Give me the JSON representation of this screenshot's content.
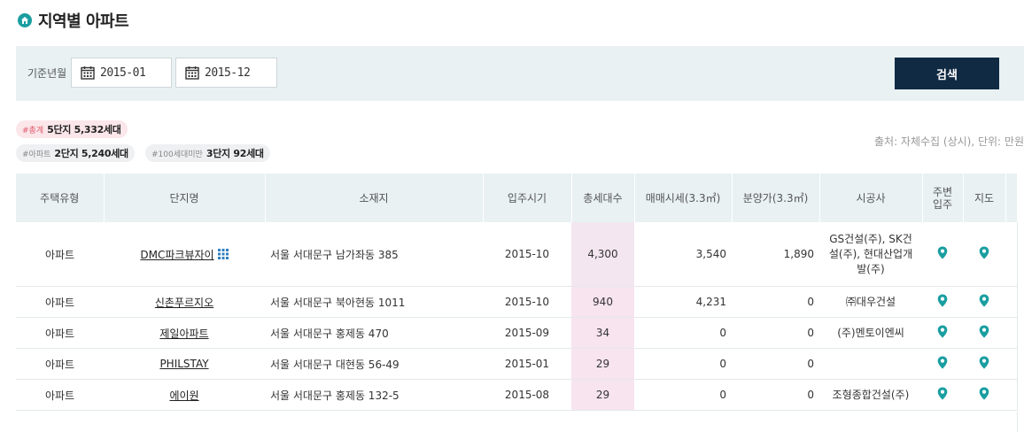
{
  "page": {
    "title": "지역별 아파트"
  },
  "search": {
    "label": "기준년월",
    "start": "2015-01",
    "end": "2015-12",
    "button": "검색"
  },
  "summary": {
    "total_key": "#총계",
    "total_value": "5단지 5,332세대",
    "apt_key": "#아파트",
    "apt_value": "2단지 5,240세대",
    "small_key": "#100세대미만",
    "small_value": "3단지 92세대",
    "source": "출처: 자체수집 (상시), 단위: 만원"
  },
  "table": {
    "headers": [
      "주택유형",
      "단지명",
      "소재지",
      "입주시기",
      "총세대수",
      "매매시세(3.3㎡)",
      "분양가(3.3㎡)",
      "시공사",
      "주변\n입주",
      "지도"
    ],
    "rows": [
      {
        "type": "아파트",
        "name": "DMC파크뷰자이",
        "addr": "서울 서대문구 남가좌동 385",
        "date": "2015-10",
        "units": "4,300",
        "price": "3,540",
        "presale": "1,890",
        "builder": "GS건설(주), SK건설(주), 현대산업개발(주)"
      },
      {
        "type": "아파트",
        "name": "신촌푸르지오",
        "addr": "서울 서대문구 북아현동 1011",
        "date": "2015-10",
        "units": "940",
        "price": "4,231",
        "presale": "0",
        "builder": "㈜대우건설"
      },
      {
        "type": "아파트",
        "name": "제일아파트",
        "addr": "서울 서대문구 홍제동 470",
        "date": "2015-09",
        "units": "34",
        "price": "0",
        "presale": "0",
        "builder": "(주)멘토이엔씨"
      },
      {
        "type": "아파트",
        "name": "PHILSTAY",
        "addr": "서울 서대문구 대현동 56-49",
        "date": "2015-01",
        "units": "29",
        "price": "0",
        "presale": "0",
        "builder": ""
      },
      {
        "type": "아파트",
        "name": "에이원",
        "addr": "서울 서대문구 홍제동 132-5",
        "date": "2015-08",
        "units": "29",
        "price": "0",
        "presale": "0",
        "builder": "조형종합건설(주)"
      }
    ]
  },
  "colors": {
    "accent": "#1a9ea0",
    "button": "#102a43",
    "header_bg": "#e9f1f3",
    "units_bg": "#f7e4ef"
  },
  "icons": {
    "title": "home-circle-icon",
    "calendar": "calendar-icon",
    "map": "map-pin-icon",
    "grid": "grid-icon"
  }
}
